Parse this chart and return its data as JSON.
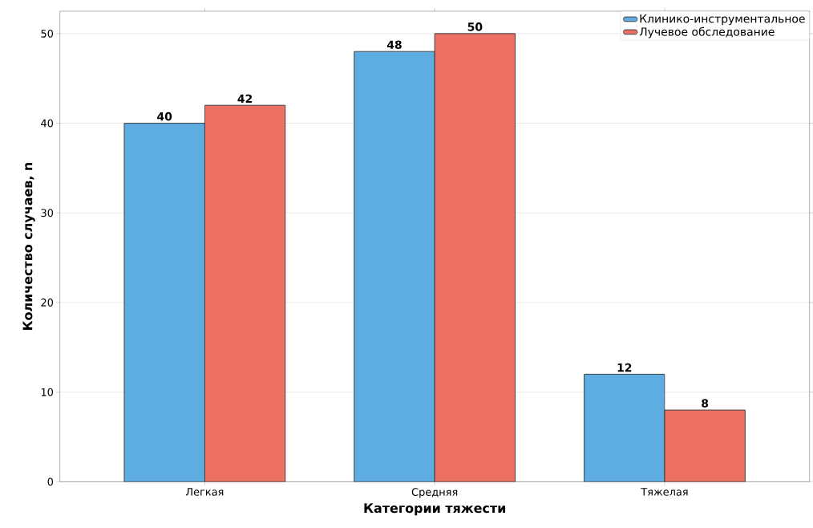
{
  "chart_data": {
    "type": "bar",
    "xlabel": "Категории тяжести",
    "ylabel": "Количество случаев, n",
    "categories": [
      "Легкая",
      "Средняя",
      "Тяжелая"
    ],
    "series": [
      {
        "name": "Клинико-инструментальное",
        "color": "#5dade2",
        "values": [
          40,
          48,
          12
        ]
      },
      {
        "name": "Лучевое обследование",
        "color": "#ec7063",
        "values": [
          42,
          50,
          8
        ]
      }
    ],
    "ylim": [
      0,
      52.5
    ],
    "yticks": [
      0,
      10,
      20,
      30,
      40,
      50
    ],
    "grid": "y",
    "legend": "top right",
    "data_labels": true
  }
}
